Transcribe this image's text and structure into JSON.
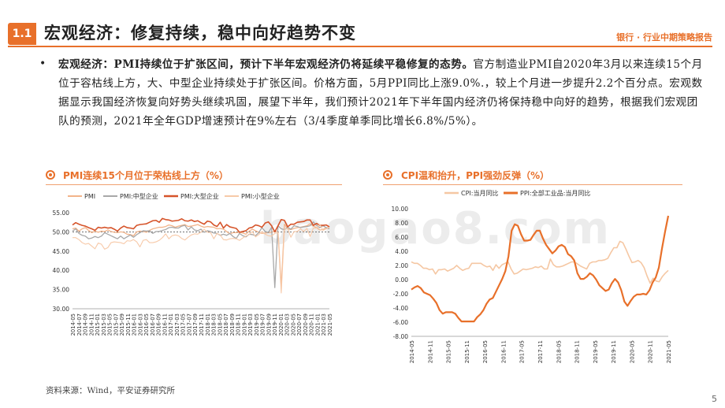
{
  "header": {
    "badge": "1.1",
    "title": "宏观经济：修复持续，稳中向好趋势不变",
    "breadcrumb": "银行 · 行业中期策略报告"
  },
  "body": {
    "bullet": "•",
    "lead": "宏观经济：PMI持续位于扩张区间，预计下半年宏观经济仍将延续平稳修复的态势。",
    "text": "官方制造业PMI自2020年3月以来连续15个月位于容枯线上方，大、中型企业持续处于扩张区间。价格方面，5月PPI同比上涨9.0%.，较上个月进一步提升2.2个百分点。宏观数据显示我国经济恢复向好势头继续巩固，展望下半年，我们预计2021年下半年国内经济仍将保持稳中向好的趋势，根据我们宏观团队的预测，2021年全年GDP增速预计在9%左右（3/4季度单季同比增长6.8%/5%）。"
  },
  "watermark": "baogao8.com",
  "source": "资料来源：Wind，平安证券研究所",
  "page_number": "5",
  "colors": {
    "accent": "#e8702a"
  },
  "chart_data": [
    {
      "type": "line",
      "title": "PMI连续15个月位于荣枯线上方（%）",
      "ylim": [
        30,
        55
      ],
      "yticks": [
        "55.00",
        "50.00",
        "45.00",
        "40.00",
        "35.00",
        "30.00"
      ],
      "x_ticks": [
        "2014-05",
        "2014-07",
        "2014-09",
        "2014-11",
        "2015-01",
        "2015-03",
        "2015-05",
        "2015-07",
        "2015-09",
        "2015-11",
        "2016-01",
        "2016-03",
        "2016-05",
        "2016-07",
        "2016-09",
        "2016-11",
        "2017-01",
        "2017-03",
        "2017-05",
        "2017-07",
        "2017-09",
        "2017-11",
        "2018-01",
        "2018-03",
        "2018-05",
        "2018-07",
        "2018-09",
        "2018-11",
        "2019-01",
        "2019-03",
        "2019-05",
        "2019-07",
        "2019-09",
        "2019-11",
        "2020-01",
        "2020-03",
        "2020-05",
        "2020-07",
        "2020-09",
        "2020-11",
        "2021-01",
        "2021-03",
        "2021-05"
      ],
      "reference_line": 50,
      "series": [
        {
          "name": "PMI",
          "color": "#f2b48a",
          "width": 1.3,
          "values": [
            50.8,
            51.0,
            50.2,
            50.8,
            51.1,
            50.4,
            49.8,
            50.2,
            49.9,
            50.2,
            50.1,
            50.5,
            50.1,
            49.9,
            49.8,
            50.0,
            49.9,
            49.4,
            49.3,
            49.0,
            50.0,
            50.2,
            50.1,
            49.9,
            50.4,
            50.8,
            51.0,
            51.2,
            51.2,
            51.4,
            51.8,
            51.6,
            51.2,
            51.5,
            51.7,
            51.9,
            51.4,
            51.5,
            51.7,
            51.9,
            51.5,
            51.2,
            51.4,
            51.3,
            51.2,
            50.8,
            50.9,
            50.7,
            50.1,
            49.5,
            49.8,
            49.8,
            49.9,
            49.7,
            49.4,
            50.2,
            50.7,
            50.3,
            49.9,
            49.6,
            49.7,
            49.8,
            49.9,
            50.2,
            50.0,
            35.7,
            52.0,
            50.8,
            50.6,
            50.9,
            51.1,
            51.2,
            51.4,
            51.6,
            52.1,
            51.5,
            51.1,
            50.5,
            50.6,
            51.1,
            51.0
          ]
        },
        {
          "name": "PMI:中型企业",
          "color": "#a8a8a8",
          "width": 1.3,
          "values": [
            50.2,
            50.8,
            49.6,
            49.1,
            48.9,
            48.2,
            48.4,
            48.8,
            48.5,
            48.9,
            49.8,
            49.4,
            49.0,
            48.6,
            48.2,
            48.9,
            48.2,
            48.7,
            49.2,
            48.6,
            49.3,
            49.8,
            50.3,
            50.2,
            50.3,
            49.6,
            50.1,
            50.1,
            50.4,
            50.6,
            51.1,
            51.2,
            51.0,
            51.0,
            51.5,
            51.7,
            50.5,
            51.3,
            50.5,
            50.3,
            50.7,
            49.9,
            50.3,
            50.1,
            49.7,
            49.6,
            49.1,
            49.4,
            49.1,
            49.6,
            48.8,
            48.3,
            49.6,
            49.0,
            48.7,
            49.4,
            49.3,
            49.0,
            49.8,
            51.1,
            50.1,
            49.8,
            51.2,
            35.5,
            51.6,
            50.8,
            50.6,
            51.2,
            50.7,
            51.6,
            51.4,
            51.1,
            51.3,
            51.4,
            51.6,
            52.6,
            51.7,
            51.1,
            51.6,
            51.1,
            50.8
          ]
        },
        {
          "name": "PMI:大型企业",
          "color": "#d6542a",
          "width": 1.6,
          "values": [
            51.8,
            52.4,
            52.0,
            51.7,
            51.5,
            51.1,
            50.8,
            50.4,
            51.2,
            51.0,
            51.2,
            51.0,
            51.1,
            50.7,
            50.2,
            51.0,
            51.5,
            51.1,
            51.0,
            50.8,
            51.7,
            51.9,
            52.0,
            52.1,
            52.5,
            52.9,
            53.0,
            52.5,
            53.5,
            53.2,
            53.1,
            52.8,
            52.9,
            53.0,
            53.4,
            52.9,
            52.8,
            53.1,
            52.7,
            52.9,
            52.4,
            52.0,
            52.8,
            52.6,
            51.8,
            51.4,
            52.5,
            51.0,
            51.9,
            51.3,
            51.1,
            50.9,
            49.9,
            50.1,
            50.3,
            51.0,
            51.2,
            51.8,
            51.6,
            51.2,
            52.3,
            52.6,
            51.6,
            50.0,
            51.6,
            53.2,
            53.0,
            51.3,
            52.0,
            52.0,
            52.5,
            52.6,
            52.7,
            53.1,
            53.1,
            51.7,
            52.2,
            51.7,
            51.7,
            51.8,
            51.3
          ]
        },
        {
          "name": "PMI:小型企业",
          "color": "#f7c9a8",
          "width": 1.1,
          "values": [
            48.5,
            48.5,
            48.0,
            47.2,
            46.8,
            47.0,
            46.3,
            45.6,
            47.1,
            46.8,
            45.5,
            45.9,
            47.2,
            47.4,
            47.3,
            47.2,
            46.9,
            47.7,
            47.6,
            48.0,
            47.4,
            46.1,
            47.8,
            48.0,
            47.2,
            47.2,
            47.4,
            47.8,
            48.5,
            49.5,
            48.2,
            49.0,
            49.2,
            49.0,
            48.3,
            47.9,
            48.6,
            49.2,
            49.5,
            49.4,
            49.9,
            50.7,
            49.9,
            49.8,
            48.2,
            49.6,
            49.2,
            48.0,
            47.9,
            48.2,
            48.3,
            48.2,
            47.8,
            48.4,
            48.9,
            49.3,
            50.1,
            48.7,
            49.3,
            50.1,
            49.4,
            49.0,
            48.9,
            49.6,
            49.8,
            34.1,
            50.8,
            50.9,
            48.6,
            50.1,
            50.1,
            50.8,
            50.1,
            50.9,
            48.8,
            51.0,
            51.0,
            52.0,
            50.4,
            50.8,
            51.2
          ]
        }
      ]
    },
    {
      "type": "line",
      "title": "CPI温和抬升，PPI强劲反弹（%）",
      "ylim": [
        -8,
        10
      ],
      "yticks": [
        "10.00",
        "8.00",
        "6.00",
        "4.00",
        "2.00",
        "0.00",
        "-2.00",
        "-4.00",
        "-6.00",
        "-8.00"
      ],
      "x_ticks": [
        "2014-05",
        "2014-11",
        "2015-05",
        "2015-11",
        "2016-05",
        "2016-11",
        "2017-05",
        "2017-11",
        "2018-05",
        "2018-11",
        "2019-05",
        "2019-11",
        "2020-05",
        "2020-11",
        "2021-05"
      ],
      "series": [
        {
          "name": "CPI:当月同比",
          "color": "#f5c7a3",
          "width": 1.6,
          "values": [
            2.5,
            2.3,
            2.3,
            2.0,
            1.6,
            1.6,
            1.4,
            1.5,
            0.8,
            1.4,
            1.4,
            1.5,
            1.2,
            1.4,
            1.6,
            2.0,
            1.6,
            1.3,
            1.5,
            1.6,
            2.3,
            2.3,
            2.3,
            2.3,
            2.0,
            1.8,
            1.9,
            1.3,
            2.1,
            1.6,
            2.1,
            2.3,
            2.5,
            1.5,
            0.8,
            0.9,
            1.2,
            1.5,
            1.4,
            1.5,
            1.6,
            1.8,
            1.7,
            1.9,
            1.5,
            1.5,
            2.9,
            2.1,
            1.8,
            1.8,
            1.9,
            2.1,
            2.3,
            2.5,
            2.5,
            2.2,
            1.9,
            1.7,
            1.5,
            2.3,
            2.5,
            2.5,
            2.7,
            2.7,
            2.8,
            3.0,
            3.8,
            4.5,
            4.5,
            5.4,
            5.2,
            4.3,
            3.3,
            2.4,
            2.5,
            2.7,
            2.4,
            1.7,
            0.5,
            -0.5,
            0.2,
            -0.2,
            -0.3,
            0.4,
            0.9,
            1.3
          ]
        },
        {
          "name": "PPI:全部工业品:当月同比",
          "color": "#e8702a",
          "width": 2.2,
          "values": [
            -1.4,
            -1.1,
            -0.9,
            -1.2,
            -1.8,
            -2.0,
            -2.2,
            -2.7,
            -3.3,
            -4.3,
            -4.8,
            -4.6,
            -4.6,
            -4.6,
            -4.8,
            -5.4,
            -5.9,
            -5.9,
            -5.9,
            -5.9,
            -5.9,
            -5.3,
            -4.9,
            -4.3,
            -3.4,
            -2.8,
            -2.6,
            -1.7,
            -0.8,
            0.1,
            1.2,
            3.3,
            6.9,
            7.8,
            7.6,
            6.4,
            5.5,
            5.5,
            5.6,
            6.3,
            6.9,
            6.9,
            5.8,
            4.9,
            4.3,
            3.7,
            4.1,
            4.7,
            4.9,
            4.6,
            3.6,
            3.3,
            2.7,
            0.9,
            0.1,
            0.1,
            0.4,
            0.9,
            0.6,
            0.0,
            -0.8,
            -1.2,
            -1.6,
            -1.4,
            -0.5,
            0.1,
            -0.4,
            -1.5,
            -3.1,
            -3.7,
            -3.0,
            -2.4,
            -2.1,
            -2.1,
            -2.0,
            -2.1,
            -1.5,
            -0.4,
            0.3,
            1.7,
            4.4,
            6.8,
            9.0
          ]
        }
      ]
    }
  ]
}
